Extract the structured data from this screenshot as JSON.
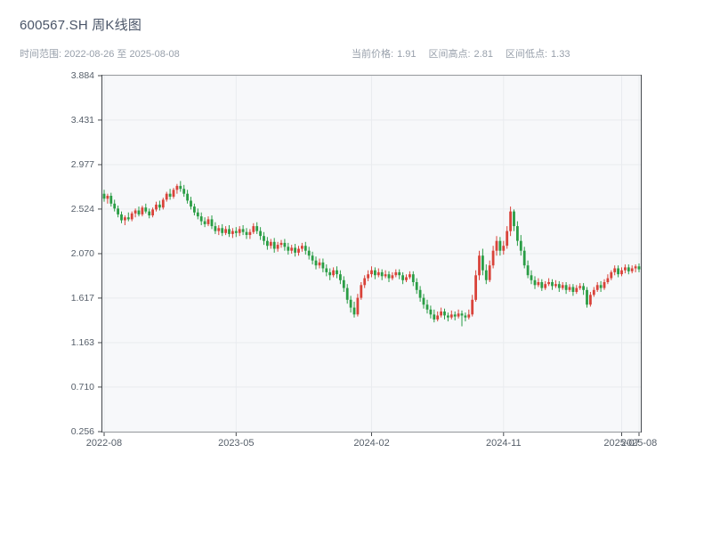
{
  "header": {
    "title": "600567.SH 周K线图",
    "date_range": "时间范围: 2022-08-26 至 2025-08-08",
    "stats": [
      {
        "label": "当前价格:",
        "value": "1.91"
      },
      {
        "label": "区间高点:",
        "value": "2.81"
      },
      {
        "label": "区间低点:",
        "value": "1.33"
      }
    ]
  },
  "chart_data": {
    "type": "candlestick",
    "title": "600567.SH 周K线图",
    "frequency": "weekly",
    "date_start": "2022-08-26",
    "date_end": "2025-08-08",
    "current_price": 1.91,
    "range_high": 2.81,
    "range_low": 1.33,
    "ylim": [
      0.256,
      3.884
    ],
    "y_ticks": [
      3.884,
      3.431,
      2.977,
      2.524,
      2.07,
      1.617,
      1.163,
      0.71,
      0.256
    ],
    "x_ticks": [
      {
        "index": 0,
        "label": "2022-08"
      },
      {
        "index": 38,
        "label": "2023-05"
      },
      {
        "index": 77,
        "label": "2024-02"
      },
      {
        "index": 115,
        "label": "2024-11"
      },
      {
        "index": 149,
        "label": "2025-07"
      },
      {
        "index": 154,
        "label": "2025-08"
      }
    ],
    "up_color": "#d9433a",
    "down_color": "#2a9d45",
    "axis_color": "#45494e",
    "grid": true,
    "grid_color": "#e9ebef",
    "plot_bg": "#f7f8fa",
    "tick_label_color": "#555e69",
    "xlabel": "",
    "ylabel": "",
    "legend": "none",
    "ohlc": [
      [
        2.68,
        2.72,
        2.6,
        2.63
      ],
      [
        2.63,
        2.68,
        2.58,
        2.66
      ],
      [
        2.66,
        2.69,
        2.55,
        2.58
      ],
      [
        2.58,
        2.62,
        2.5,
        2.53
      ],
      [
        2.53,
        2.56,
        2.44,
        2.47
      ],
      [
        2.47,
        2.5,
        2.38,
        2.41
      ],
      [
        2.41,
        2.46,
        2.36,
        2.44
      ],
      [
        2.44,
        2.49,
        2.4,
        2.42
      ],
      [
        2.42,
        2.5,
        2.4,
        2.48
      ],
      [
        2.48,
        2.53,
        2.44,
        2.51
      ],
      [
        2.51,
        2.55,
        2.45,
        2.47
      ],
      [
        2.47,
        2.56,
        2.45,
        2.54
      ],
      [
        2.54,
        2.58,
        2.48,
        2.5
      ],
      [
        2.5,
        2.53,
        2.43,
        2.46
      ],
      [
        2.46,
        2.54,
        2.44,
        2.52
      ],
      [
        2.52,
        2.6,
        2.5,
        2.57
      ],
      [
        2.57,
        2.61,
        2.51,
        2.54
      ],
      [
        2.54,
        2.64,
        2.52,
        2.62
      ],
      [
        2.62,
        2.7,
        2.6,
        2.68
      ],
      [
        2.68,
        2.73,
        2.62,
        2.65
      ],
      [
        2.65,
        2.74,
        2.63,
        2.72
      ],
      [
        2.72,
        2.78,
        2.68,
        2.76
      ],
      [
        2.76,
        2.81,
        2.7,
        2.73
      ],
      [
        2.73,
        2.77,
        2.65,
        2.68
      ],
      [
        2.68,
        2.72,
        2.58,
        2.61
      ],
      [
        2.61,
        2.65,
        2.52,
        2.55
      ],
      [
        2.55,
        2.58,
        2.46,
        2.49
      ],
      [
        2.49,
        2.53,
        2.42,
        2.45
      ],
      [
        2.45,
        2.49,
        2.36,
        2.4
      ],
      [
        2.4,
        2.44,
        2.34,
        2.37
      ],
      [
        2.37,
        2.45,
        2.35,
        2.42
      ],
      [
        2.42,
        2.46,
        2.32,
        2.35
      ],
      [
        2.35,
        2.39,
        2.27,
        2.3
      ],
      [
        2.3,
        2.36,
        2.26,
        2.33
      ],
      [
        2.33,
        2.37,
        2.25,
        2.28
      ],
      [
        2.28,
        2.35,
        2.26,
        2.32
      ],
      [
        2.32,
        2.36,
        2.24,
        2.27
      ],
      [
        2.27,
        2.33,
        2.23,
        2.3
      ],
      [
        2.3,
        2.34,
        2.24,
        2.28
      ],
      [
        2.28,
        2.35,
        2.25,
        2.32
      ],
      [
        2.32,
        2.36,
        2.26,
        2.29
      ],
      [
        2.29,
        2.33,
        2.22,
        2.26
      ],
      [
        2.26,
        2.32,
        2.22,
        2.29
      ],
      [
        2.29,
        2.38,
        2.27,
        2.35
      ],
      [
        2.35,
        2.39,
        2.27,
        2.3
      ],
      [
        2.3,
        2.34,
        2.21,
        2.25
      ],
      [
        2.25,
        2.29,
        2.16,
        2.2
      ],
      [
        2.2,
        2.24,
        2.11,
        2.15
      ],
      [
        2.15,
        2.22,
        2.12,
        2.19
      ],
      [
        2.19,
        2.23,
        2.08,
        2.12
      ],
      [
        2.12,
        2.19,
        2.09,
        2.16
      ],
      [
        2.16,
        2.21,
        2.13,
        2.18
      ],
      [
        2.18,
        2.22,
        2.1,
        2.14
      ],
      [
        2.14,
        2.18,
        2.06,
        2.1
      ],
      [
        2.1,
        2.16,
        2.07,
        2.13
      ],
      [
        2.13,
        2.17,
        2.04,
        2.08
      ],
      [
        2.08,
        2.15,
        2.05,
        2.12
      ],
      [
        2.12,
        2.18,
        2.09,
        2.15
      ],
      [
        2.15,
        2.19,
        2.06,
        2.1
      ],
      [
        2.1,
        2.14,
        2.01,
        2.05
      ],
      [
        2.05,
        2.09,
        1.96,
        2.0
      ],
      [
        2.0,
        2.04,
        1.91,
        1.95
      ],
      [
        1.95,
        2.02,
        1.92,
        1.98
      ],
      [
        1.98,
        2.02,
        1.88,
        1.92
      ],
      [
        1.92,
        1.96,
        1.84,
        1.88
      ],
      [
        1.88,
        1.92,
        1.8,
        1.85
      ],
      [
        1.85,
        1.93,
        1.83,
        1.9
      ],
      [
        1.9,
        1.94,
        1.82,
        1.86
      ],
      [
        1.86,
        1.9,
        1.76,
        1.8
      ],
      [
        1.8,
        1.84,
        1.68,
        1.72
      ],
      [
        1.72,
        1.76,
        1.56,
        1.6
      ],
      [
        1.6,
        1.64,
        1.47,
        1.52
      ],
      [
        1.52,
        1.58,
        1.42,
        1.45
      ],
      [
        1.45,
        1.66,
        1.43,
        1.62
      ],
      [
        1.62,
        1.78,
        1.6,
        1.75
      ],
      [
        1.75,
        1.85,
        1.72,
        1.82
      ],
      [
        1.82,
        1.9,
        1.79,
        1.86
      ],
      [
        1.86,
        1.94,
        1.83,
        1.9
      ],
      [
        1.9,
        1.93,
        1.81,
        1.85
      ],
      [
        1.85,
        1.92,
        1.83,
        1.88
      ],
      [
        1.88,
        1.91,
        1.8,
        1.84
      ],
      [
        1.84,
        1.9,
        1.82,
        1.86
      ],
      [
        1.86,
        1.89,
        1.78,
        1.82
      ],
      [
        1.82,
        1.88,
        1.8,
        1.85
      ],
      [
        1.85,
        1.91,
        1.83,
        1.88
      ],
      [
        1.88,
        1.91,
        1.81,
        1.85
      ],
      [
        1.85,
        1.88,
        1.76,
        1.8
      ],
      [
        1.8,
        1.86,
        1.78,
        1.83
      ],
      [
        1.83,
        1.89,
        1.81,
        1.86
      ],
      [
        1.86,
        1.89,
        1.74,
        1.78
      ],
      [
        1.78,
        1.82,
        1.66,
        1.7
      ],
      [
        1.7,
        1.74,
        1.58,
        1.62
      ],
      [
        1.62,
        1.66,
        1.51,
        1.55
      ],
      [
        1.55,
        1.6,
        1.46,
        1.5
      ],
      [
        1.5,
        1.54,
        1.41,
        1.45
      ],
      [
        1.45,
        1.5,
        1.37,
        1.4
      ],
      [
        1.4,
        1.48,
        1.38,
        1.44
      ],
      [
        1.44,
        1.52,
        1.42,
        1.48
      ],
      [
        1.48,
        1.51,
        1.4,
        1.44
      ],
      [
        1.44,
        1.47,
        1.38,
        1.42
      ],
      [
        1.42,
        1.49,
        1.4,
        1.45
      ],
      [
        1.45,
        1.48,
        1.39,
        1.43
      ],
      [
        1.43,
        1.5,
        1.41,
        1.46
      ],
      [
        1.46,
        1.49,
        1.33,
        1.44
      ],
      [
        1.44,
        1.47,
        1.38,
        1.42
      ],
      [
        1.42,
        1.5,
        1.4,
        1.45
      ],
      [
        1.45,
        1.65,
        1.43,
        1.6
      ],
      [
        1.6,
        1.9,
        1.58,
        1.85
      ],
      [
        1.85,
        2.1,
        1.8,
        2.05
      ],
      [
        2.05,
        2.12,
        1.85,
        1.9
      ],
      [
        1.9,
        1.96,
        1.76,
        1.8
      ],
      [
        1.8,
        2.0,
        1.78,
        1.95
      ],
      [
        1.95,
        2.15,
        1.92,
        2.1
      ],
      [
        2.1,
        2.25,
        2.05,
        2.2
      ],
      [
        2.2,
        2.24,
        2.05,
        2.1
      ],
      [
        2.1,
        2.2,
        2.06,
        2.15
      ],
      [
        2.15,
        2.35,
        2.12,
        2.3
      ],
      [
        2.3,
        2.55,
        2.25,
        2.5
      ],
      [
        2.5,
        2.52,
        2.3,
        2.35
      ],
      [
        2.35,
        2.4,
        2.15,
        2.2
      ],
      [
        2.2,
        2.26,
        2.05,
        2.1
      ],
      [
        2.1,
        2.14,
        1.92,
        1.95
      ],
      [
        1.95,
        2.0,
        1.82,
        1.85
      ],
      [
        1.85,
        1.9,
        1.76,
        1.8
      ],
      [
        1.8,
        1.84,
        1.71,
        1.75
      ],
      [
        1.75,
        1.82,
        1.73,
        1.78
      ],
      [
        1.78,
        1.81,
        1.69,
        1.72
      ],
      [
        1.72,
        1.79,
        1.7,
        1.76
      ],
      [
        1.76,
        1.82,
        1.74,
        1.78
      ],
      [
        1.78,
        1.81,
        1.7,
        1.74
      ],
      [
        1.74,
        1.8,
        1.72,
        1.76
      ],
      [
        1.76,
        1.79,
        1.68,
        1.72
      ],
      [
        1.72,
        1.78,
        1.7,
        1.75
      ],
      [
        1.75,
        1.78,
        1.66,
        1.7
      ],
      [
        1.7,
        1.76,
        1.68,
        1.73
      ],
      [
        1.73,
        1.76,
        1.64,
        1.68
      ],
      [
        1.68,
        1.75,
        1.66,
        1.72
      ],
      [
        1.72,
        1.77,
        1.7,
        1.74
      ],
      [
        1.74,
        1.77,
        1.65,
        1.7
      ],
      [
        1.7,
        1.73,
        1.52,
        1.55
      ],
      [
        1.55,
        1.68,
        1.53,
        1.65
      ],
      [
        1.65,
        1.73,
        1.63,
        1.7
      ],
      [
        1.7,
        1.78,
        1.68,
        1.75
      ],
      [
        1.75,
        1.79,
        1.68,
        1.72
      ],
      [
        1.72,
        1.81,
        1.7,
        1.78
      ],
      [
        1.78,
        1.86,
        1.76,
        1.82
      ],
      [
        1.82,
        1.9,
        1.8,
        1.88
      ],
      [
        1.88,
        1.95,
        1.85,
        1.92
      ],
      [
        1.92,
        1.95,
        1.83,
        1.86
      ],
      [
        1.86,
        1.93,
        1.84,
        1.9
      ],
      [
        1.9,
        1.96,
        1.87,
        1.93
      ],
      [
        1.93,
        1.96,
        1.86,
        1.89
      ],
      [
        1.89,
        1.95,
        1.87,
        1.92
      ],
      [
        1.92,
        1.96,
        1.88,
        1.94
      ],
      [
        1.94,
        1.97,
        1.88,
        1.91
      ]
    ]
  }
}
